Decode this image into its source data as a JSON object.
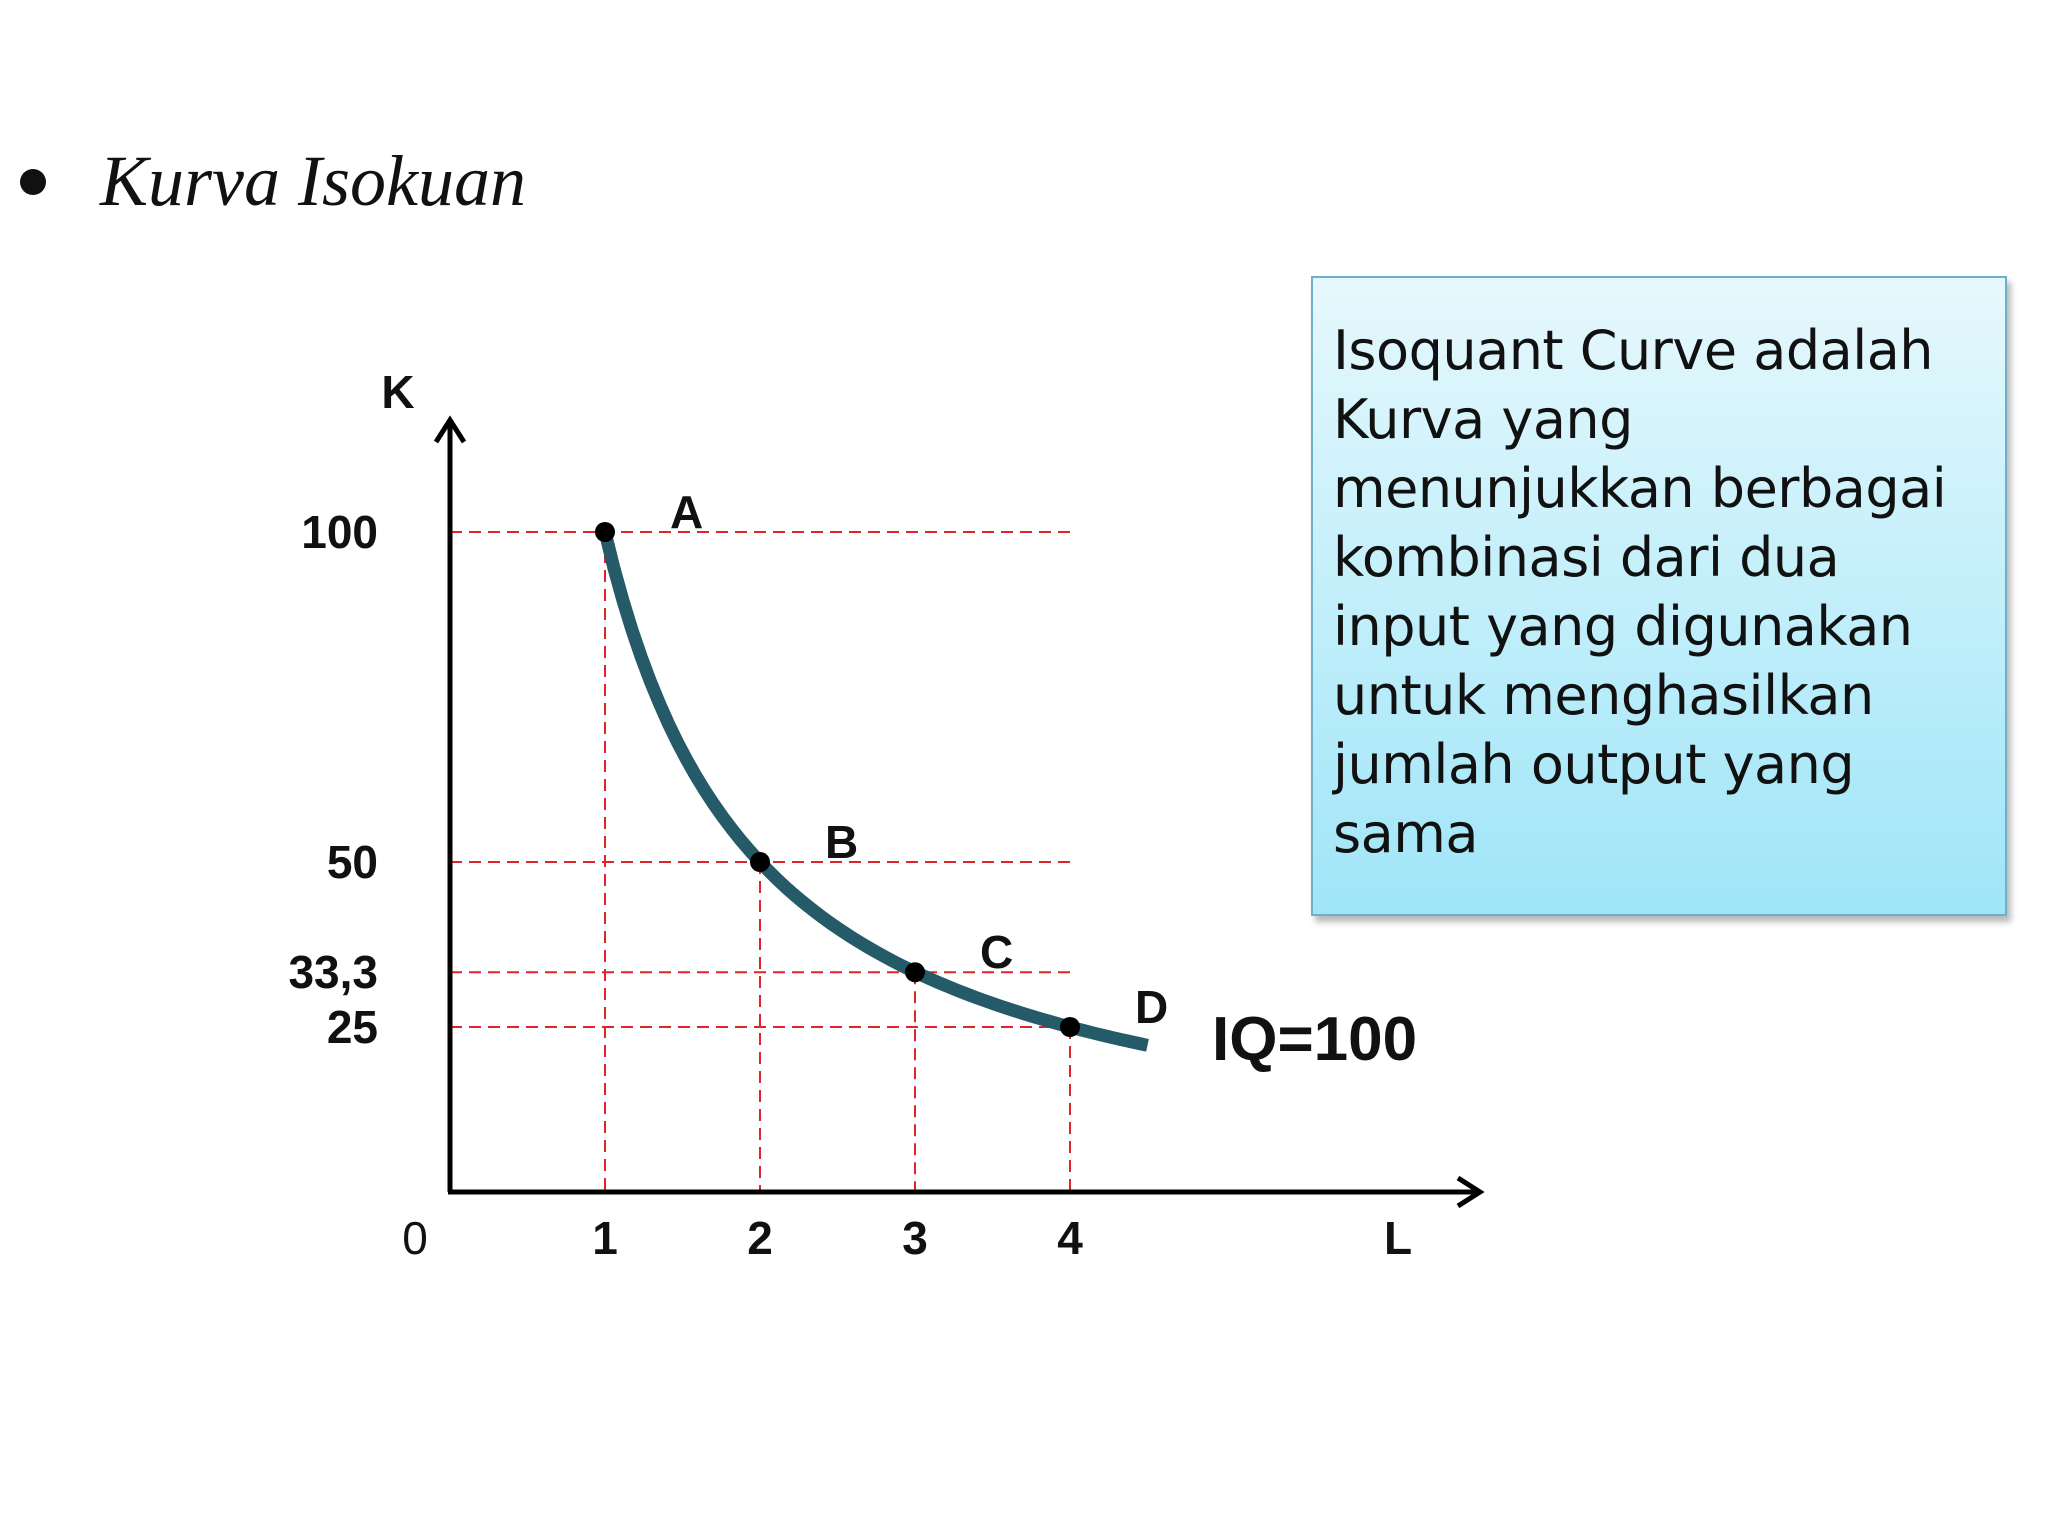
{
  "slide": {
    "title": "Kurva Isokuan",
    "definition": "Isoquant Curve adalah\nKurva yang\nmenunjukkan berbagai\nkombinasi dari dua\ninput yang digunakan\nuntuk menghasilkan\njumlah output yang\nsama"
  },
  "chart_data": {
    "type": "line",
    "xlabel": "L",
    "ylabel": "K",
    "origin_label": "0",
    "x_ticks": [
      {
        "value": 1,
        "label": "1"
      },
      {
        "value": 2,
        "label": "2"
      },
      {
        "value": 3,
        "label": "3"
      },
      {
        "value": 4,
        "label": "4"
      }
    ],
    "y_ticks": [
      {
        "value": 100,
        "label": "100"
      },
      {
        "value": 50,
        "label": "50"
      },
      {
        "value": 33.3,
        "label": "33,3"
      },
      {
        "value": 25,
        "label": "25"
      }
    ],
    "points": [
      {
        "label": "A",
        "x": 1,
        "y": 100
      },
      {
        "label": "B",
        "x": 2,
        "y": 50
      },
      {
        "label": "C",
        "x": 3,
        "y": 33.3
      },
      {
        "label": "D",
        "x": 4,
        "y": 25
      }
    ],
    "series": [
      {
        "name": "IQ=100",
        "x": [
          1,
          1.5,
          2,
          3,
          4,
          4.5
        ],
        "y": [
          100,
          66.7,
          50,
          33.3,
          25,
          22.2
        ]
      }
    ],
    "curve_color": "#255b68",
    "guide_color": "#e0242b",
    "grid": false
  }
}
